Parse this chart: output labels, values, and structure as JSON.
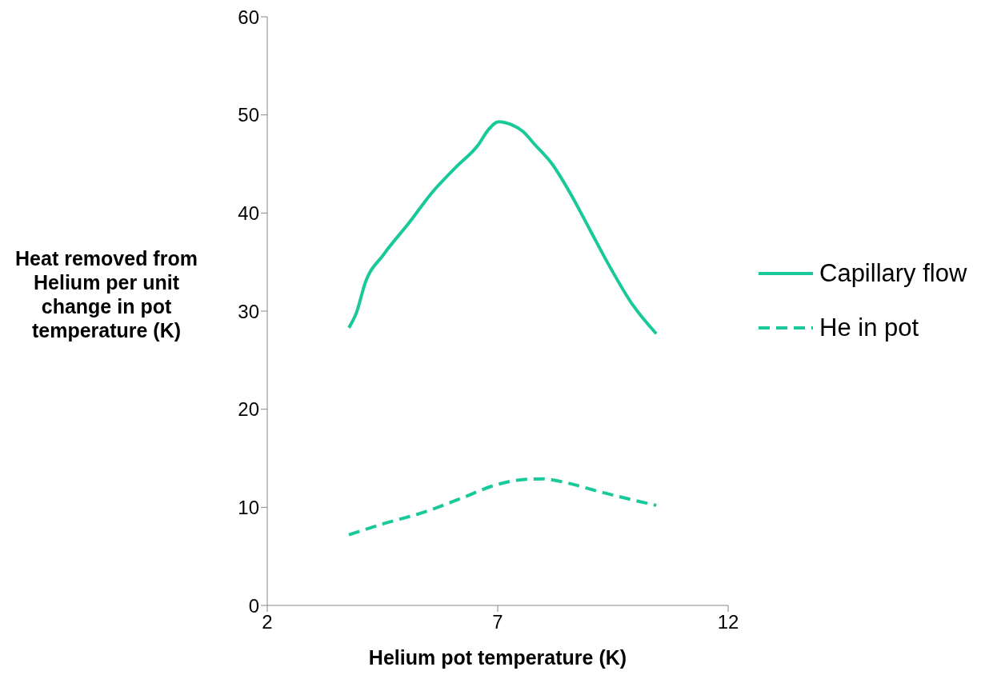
{
  "chart_data": {
    "type": "line",
    "xlabel": "Helium pot temperature (K)",
    "ylabel": "Heat removed from Helium per unit change in pot temperature (K)",
    "xlim": [
      2,
      12
    ],
    "xticks": [
      2,
      7,
      12
    ],
    "ylim": [
      0,
      60
    ],
    "yticks": [
      0,
      10,
      20,
      30,
      40,
      50,
      60
    ],
    "legend": "right",
    "marker": "none",
    "series": [
      {
        "name": "Capillary flow",
        "color": "#19c999",
        "line_style": "solid",
        "x": [
          3.77,
          3.94,
          4.12,
          4.53,
          5.06,
          5.58,
          6.1,
          6.57,
          6.8,
          7.02,
          7.3,
          7.55,
          7.8,
          8.18,
          8.6,
          9.0,
          9.4,
          9.92,
          10.44
        ],
        "values": [
          28.3,
          29.9,
          32.8,
          35.8,
          38.9,
          42.1,
          44.7,
          46.9,
          48.5,
          49.3,
          49.0,
          48.3,
          47.0,
          45.0,
          41.8,
          38.3,
          34.8,
          30.7,
          27.7
        ]
      },
      {
        "name": "He in pot",
        "color": "#19c999",
        "line_style": "dashed",
        "x": [
          3.77,
          4.5,
          5.4,
          6.2,
          6.97,
          7.5,
          7.97,
          8.5,
          9.05,
          9.8,
          10.44
        ],
        "values": [
          7.2,
          8.3,
          9.5,
          10.9,
          12.3,
          12.8,
          12.9,
          12.5,
          11.8,
          10.9,
          10.2
        ]
      }
    ]
  }
}
